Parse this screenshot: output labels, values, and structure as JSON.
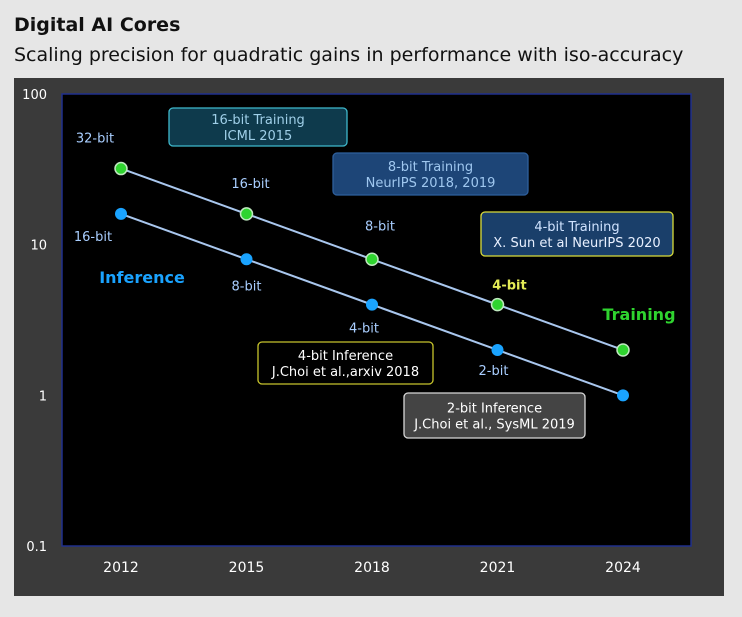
{
  "header": {
    "title": "Digital AI Cores",
    "subtitle": "Scaling precision for quadratic gains in performance with iso-accuracy"
  },
  "chart_data": {
    "type": "line",
    "title": "",
    "xlabel": "",
    "ylabel": "",
    "y_scale": "log",
    "ylim": [
      0.1,
      100
    ],
    "x_tick_labels": [
      "2012",
      "2015",
      "2018",
      "2021",
      "2024"
    ],
    "y_tick_labels": [
      "100",
      "10",
      "1",
      "0.1"
    ],
    "grid": false,
    "series": [
      {
        "name": "Training",
        "color": "#2fd42f",
        "line_color": "#a9c7ee",
        "x": [
          2012,
          2015,
          2018,
          2021,
          2024
        ],
        "y": [
          32,
          16,
          8,
          4,
          2
        ],
        "point_labels": [
          "32-bit",
          "16-bit",
          "8-bit",
          "4-bit",
          ""
        ],
        "point_label_colors": [
          "#a9ceff",
          "#a9ceff",
          "#a9ceff",
          "#e4ec56",
          "#a9ceff"
        ]
      },
      {
        "name": "Inference",
        "color": "#1aa3ff",
        "line_color": "#a9c7ee",
        "x": [
          2012,
          2015,
          2018,
          2021,
          2024
        ],
        "y": [
          16,
          8,
          4,
          2,
          1
        ],
        "point_labels": [
          "16-bit",
          "8-bit",
          "4-bit",
          "2-bit",
          ""
        ],
        "point_label_colors": [
          "#a9ceff",
          "#a9ceff",
          "#a9ceff",
          "#a9ceff",
          "#a9ceff"
        ]
      }
    ],
    "series_labels": [
      {
        "text": "Training",
        "color": "#2fd42f"
      },
      {
        "text": "Inference",
        "color": "#1aa3ff"
      }
    ],
    "annotations": [
      {
        "line1": "16-bit Training",
        "line2": "ICML 2015",
        "style": "teal"
      },
      {
        "line1": "8-bit Training",
        "line2": "NeurIPS 2018, 2019",
        "style": "blue"
      },
      {
        "line1": "4-bit Training",
        "line2": "X. Sun et al NeurIPS 2020",
        "style": "yellow"
      },
      {
        "line1": "4-bit Inference",
        "line2": "J.Choi et al.,arxiv 2018",
        "style": "olive"
      },
      {
        "line1": "2-bit Inference",
        "line2": "J.Choi et al., SysML 2019",
        "style": "gray"
      }
    ]
  }
}
